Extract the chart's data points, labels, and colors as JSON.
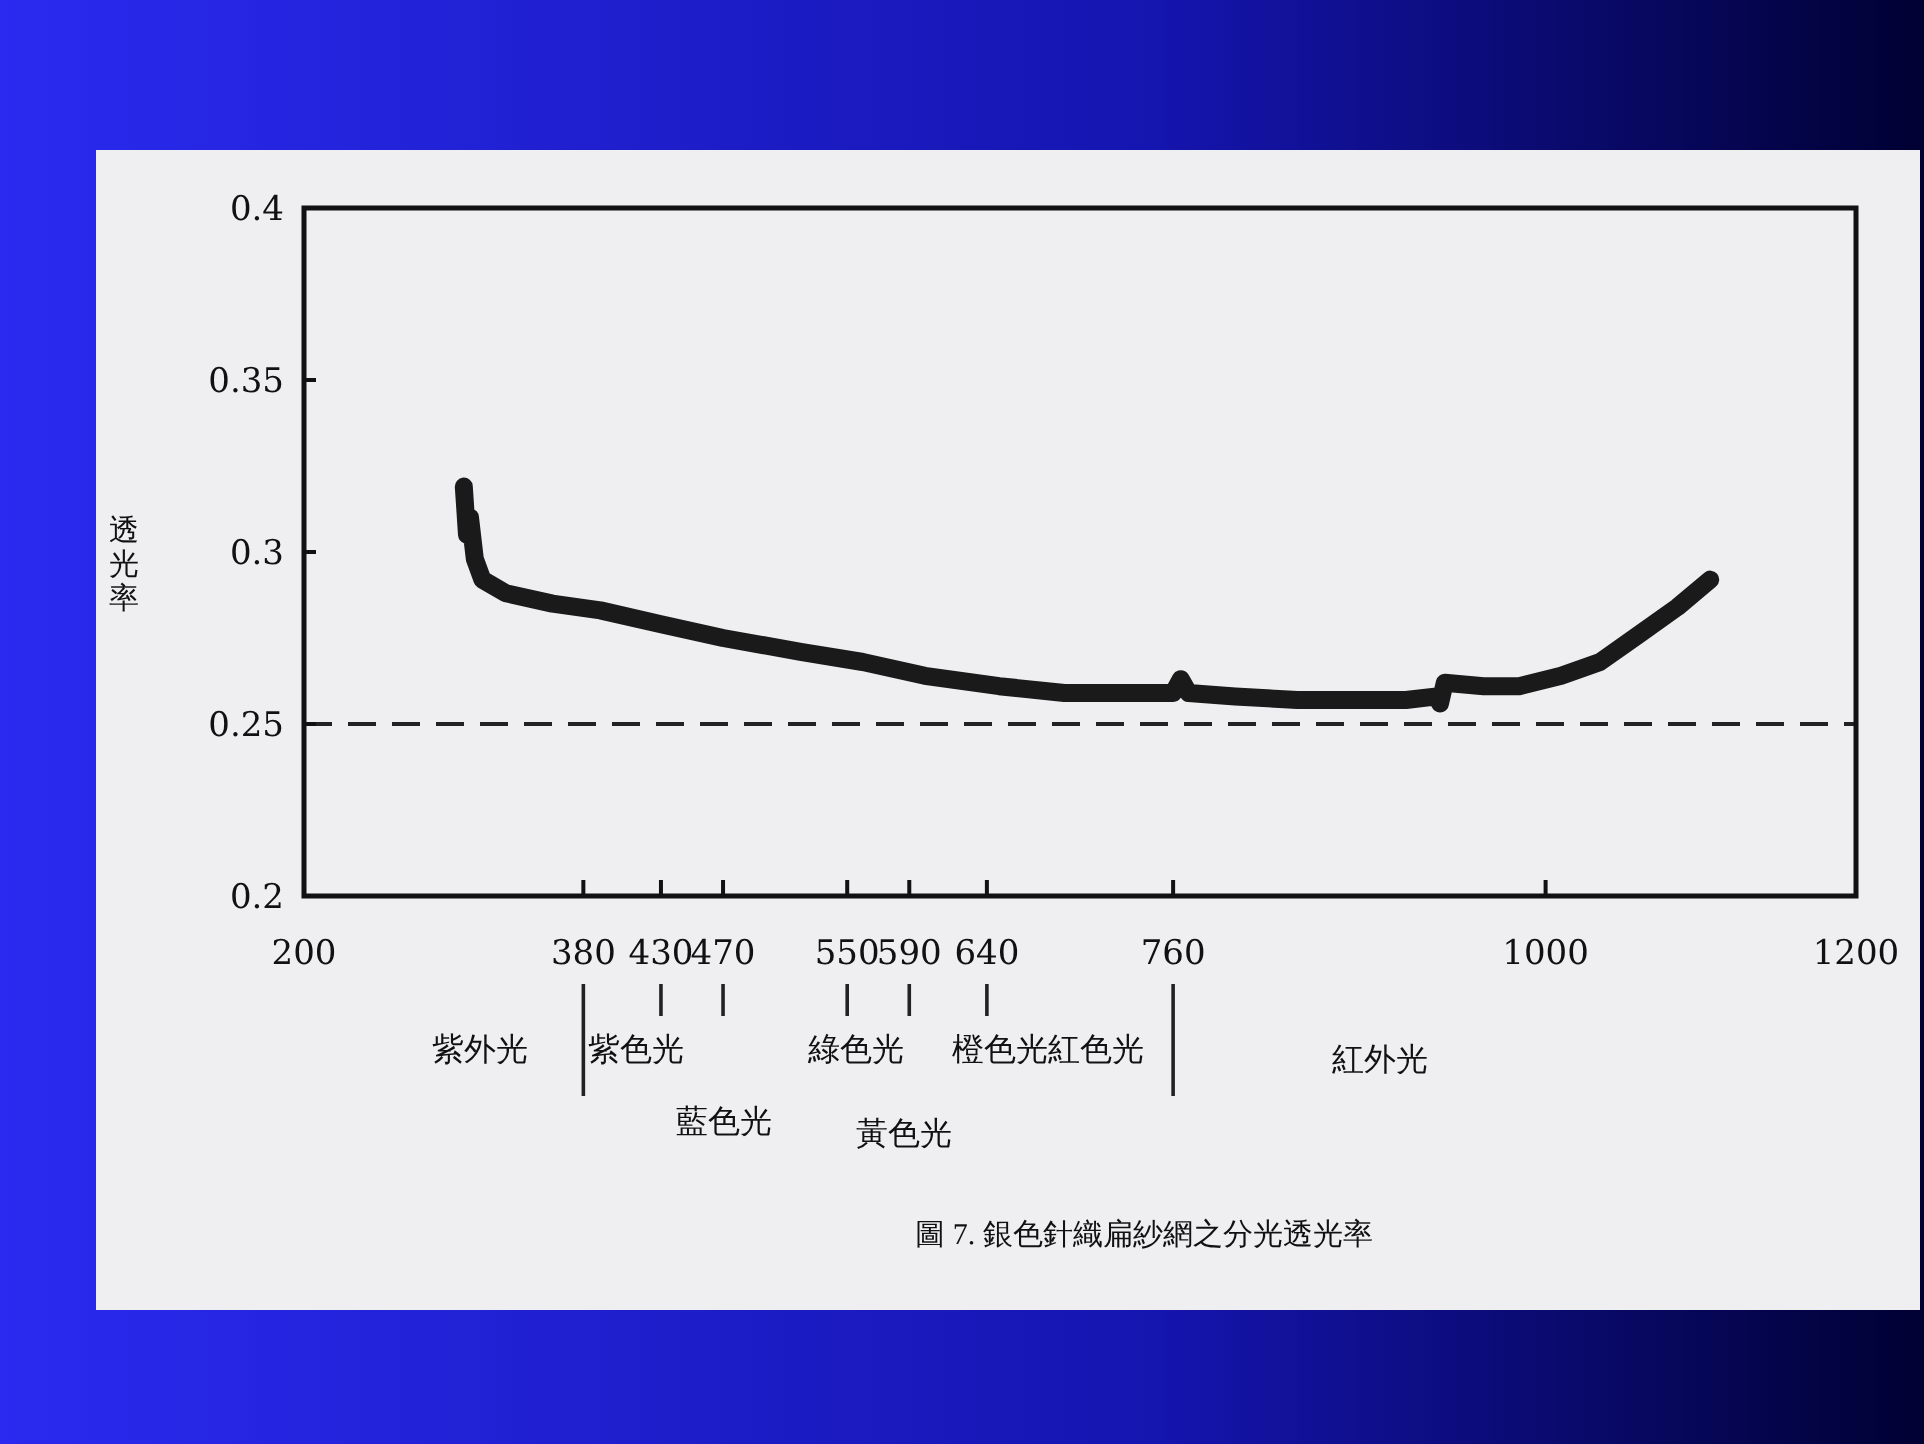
{
  "chart_data": {
    "type": "line",
    "ylabel": "透光率",
    "annotations": [
      "紫外光",
      "紫色光",
      "藍色光",
      "綠色光",
      "黃色光",
      "橙色光",
      "紅色光",
      "紅外光",
      "圖 7. 銀色針織扁紗網之分光透光率"
    ],
    "xlim": [
      200,
      1200
    ],
    "ylim": [
      0.2,
      0.4
    ],
    "xticks": [
      200,
      380,
      430,
      470,
      550,
      590,
      640,
      760,
      1000,
      1200
    ],
    "yticks": [
      0.2,
      0.25,
      0.3,
      0.35,
      0.4
    ],
    "ref_lines": [
      {
        "axis": "y",
        "value": 0.25,
        "line_style": "dashed"
      }
    ],
    "line_style": "solid",
    "series": [
      {
        "color": "#1a1a1a",
        "x": [
          303,
          305,
          307,
          310,
          315,
          330,
          360,
          391,
          430,
          470,
          520,
          560,
          600,
          648,
          690,
          740,
          760,
          765,
          770,
          800,
          840,
          880,
          910,
          930,
          932,
          935,
          960,
          983,
          1010,
          1035,
          1060,
          1085,
          1106
        ],
        "values": [
          0.319,
          0.305,
          0.31,
          0.298,
          0.292,
          0.288,
          0.285,
          0.283,
          0.279,
          0.275,
          0.271,
          0.268,
          0.264,
          0.261,
          0.259,
          0.259,
          0.259,
          0.263,
          0.259,
          0.258,
          0.257,
          0.257,
          0.257,
          0.258,
          0.256,
          0.262,
          0.261,
          0.261,
          0.264,
          0.268,
          0.276,
          0.284,
          0.292
        ]
      }
    ]
  }
}
